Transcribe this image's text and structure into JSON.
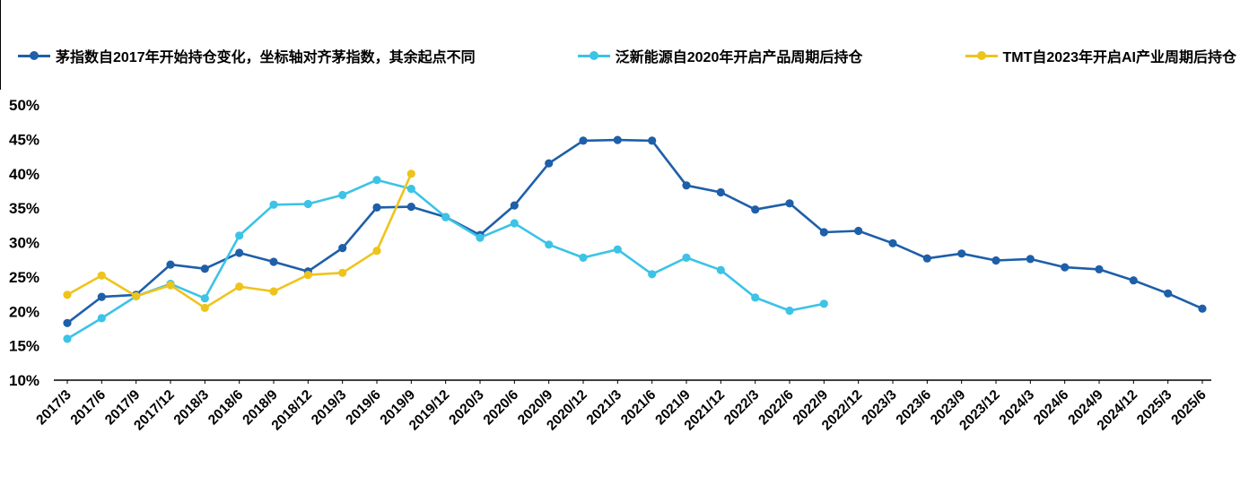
{
  "colors": {
    "mao": "#1e5fa9",
    "new_energy": "#3cc3e6",
    "tmt": "#eec41c",
    "axis": "#000000"
  },
  "legend": [
    {
      "label": "茅指数自2017年开始持仓变化，坐标轴对齐茅指数，其余起点不同",
      "color": "#1e5fa9"
    },
    {
      "label": "泛新能源自2020年开启产品周期后持仓",
      "color": "#3cc3e6"
    },
    {
      "label": "TMT自2023年开启AI产业周期后持仓",
      "color": "#eec41c"
    }
  ],
  "chart_data": {
    "type": "line",
    "categories": [
      "2017/3",
      "2017/6",
      "2017/9",
      "2017/12",
      "2018/3",
      "2018/6",
      "2018/9",
      "2018/12",
      "2019/3",
      "2019/6",
      "2019/9",
      "2019/12",
      "2020/3",
      "2020/6",
      "2020/9",
      "2020/12",
      "2021/3",
      "2021/6",
      "2021/9",
      "2021/12",
      "2022/3",
      "2022/6",
      "2022/9",
      "2022/12",
      "2023/3",
      "2023/6",
      "2023/9",
      "2023/12",
      "2024/3",
      "2024/6",
      "2024/9",
      "2024/12",
      "2025/3",
      "2025/6"
    ],
    "series": [
      {
        "key": "mao-index",
        "name": "茅指数自2017年开始持仓变化，坐标轴对齐茅指数，其余起点不同",
        "color": "#1e5fa9",
        "values": [
          18.3,
          22.1,
          22.4,
          26.8,
          26.2,
          28.5,
          27.2,
          25.8,
          29.2,
          35.1,
          35.2,
          33.7,
          31.1,
          35.4,
          41.5,
          44.8,
          44.9,
          44.8,
          38.3,
          37.3,
          34.8,
          35.7,
          31.5,
          31.7,
          29.9,
          27.7,
          28.4,
          27.4,
          27.6,
          26.4,
          26.1,
          24.5,
          22.6,
          20.4
        ]
      },
      {
        "key": "new-energy",
        "name": "泛新能源自2020年开启产品周期后持仓",
        "color": "#3cc3e6",
        "values": [
          16.0,
          19.0,
          22.2,
          24.0,
          21.9,
          31.0,
          35.5,
          35.6,
          36.9,
          39.1,
          37.8,
          33.7,
          30.7,
          32.8,
          29.7,
          27.8,
          29.0,
          25.4,
          27.8,
          26.0,
          22.0,
          20.1,
          21.1,
          null,
          null,
          null,
          null,
          null,
          null,
          null,
          null,
          null,
          null,
          null
        ]
      },
      {
        "key": "tmt",
        "name": "TMT自2023年开启AI产业周期后持仓",
        "color": "#eec41c",
        "values": [
          22.4,
          25.2,
          22.2,
          23.8,
          20.5,
          23.6,
          22.9,
          25.3,
          25.6,
          28.8,
          40.0,
          null,
          null,
          null,
          null,
          null,
          null,
          null,
          null,
          null,
          null,
          null,
          null,
          null,
          null,
          null,
          null,
          null,
          null,
          null,
          null,
          null,
          null,
          null
        ]
      }
    ],
    "ylim": [
      10,
      50
    ],
    "ytick_step": 5,
    "ytick_labels": [
      "10%",
      "15%",
      "20%",
      "25%",
      "30%",
      "35%",
      "40%",
      "45%",
      "50%"
    ],
    "grid": false,
    "legend_position": "top"
  }
}
